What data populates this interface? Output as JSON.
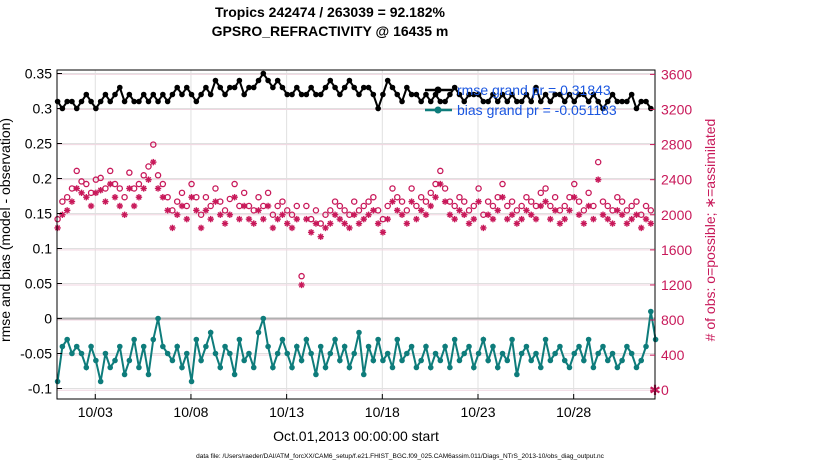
{
  "chart_data": {
    "type": "line",
    "title": "Tropics 242474 / 263039 = 92.182%",
    "subtitle": "GPSRO_REFRACTIVITY @ 16435 m",
    "xlabel": "Oct.01,2013 00:00:00 start",
    "ylabel_left": "rmse and bias (model - observation)",
    "ylabel_right": "# of obs: o=possible; ∗=assimilated",
    "x_ticks": [
      "10/03",
      "10/08",
      "10/13",
      "10/18",
      "10/23",
      "10/28"
    ],
    "x_tick_days": [
      2,
      7,
      12,
      17,
      22,
      27
    ],
    "xlim_days": [
      0,
      31.25
    ],
    "ylim_left": [
      -0.115,
      0.355
    ],
    "yticks_left": [
      "0.35",
      "0.3",
      "0.25",
      "0.2",
      "0.15",
      "0.1",
      "0.05",
      "0",
      "-0.05",
      "-0.1"
    ],
    "ylim_right": [
      -100,
      3650
    ],
    "yticks_right": [
      "3600",
      "3200",
      "2800",
      "2400",
      "2000",
      "1600",
      "1200",
      "800",
      "400",
      "0"
    ],
    "grid": true,
    "legend_placement": "top-right",
    "legend": [
      "rmse grand pr = 0.31843",
      "bias grand pr = -0.051183"
    ],
    "colors": {
      "rmse": "#000000",
      "bias": "#0e7c7b",
      "obs": "#c8195a",
      "zero_line": "#b0b0b0",
      "legend_text": "#1a56e0",
      "grid": "#e0e0e0"
    },
    "x_step_days": 0.25,
    "rmse_values": [
      0.31,
      0.3,
      0.31,
      0.31,
      0.3,
      0.31,
      0.32,
      0.31,
      0.3,
      0.31,
      0.32,
      0.31,
      0.32,
      0.33,
      0.31,
      0.32,
      0.31,
      0.31,
      0.32,
      0.31,
      0.32,
      0.31,
      0.32,
      0.31,
      0.32,
      0.33,
      0.32,
      0.33,
      0.32,
      0.31,
      0.32,
      0.33,
      0.32,
      0.34,
      0.33,
      0.32,
      0.33,
      0.33,
      0.34,
      0.32,
      0.33,
      0.33,
      0.34,
      0.35,
      0.34,
      0.33,
      0.34,
      0.33,
      0.32,
      0.32,
      0.33,
      0.32,
      0.32,
      0.33,
      0.32,
      0.32,
      0.33,
      0.34,
      0.33,
      0.32,
      0.33,
      0.34,
      0.33,
      0.32,
      0.33,
      0.33,
      0.32,
      0.3,
      0.32,
      0.34,
      0.33,
      0.32,
      0.31,
      0.33,
      0.32,
      0.32,
      0.31,
      0.32,
      0.31,
      0.32,
      0.31,
      0.31,
      0.32,
      0.33,
      0.32,
      0.31,
      0.32,
      0.32,
      0.32,
      0.31,
      0.31,
      0.32,
      0.31,
      0.32,
      0.31,
      0.32,
      0.31,
      0.31,
      0.32,
      0.31,
      0.33,
      0.31,
      0.32,
      0.31,
      0.32,
      0.32,
      0.31,
      0.32,
      0.31,
      0.32,
      0.32,
      0.31,
      0.32,
      0.31,
      0.3,
      0.31,
      0.32,
      0.31,
      0.31,
      0.31,
      0.32,
      0.3,
      0.31,
      0.31,
      0.3
    ],
    "bias_values": [
      -0.09,
      -0.04,
      -0.03,
      -0.05,
      -0.04,
      -0.05,
      -0.07,
      -0.04,
      -0.06,
      -0.09,
      -0.05,
      -0.07,
      -0.06,
      -0.04,
      -0.08,
      -0.06,
      -0.03,
      -0.07,
      -0.04,
      -0.08,
      -0.03,
      0.0,
      -0.04,
      -0.05,
      -0.06,
      -0.04,
      -0.07,
      -0.05,
      -0.09,
      -0.03,
      -0.06,
      -0.04,
      -0.02,
      -0.05,
      -0.07,
      -0.04,
      -0.05,
      -0.08,
      -0.03,
      -0.06,
      -0.05,
      -0.07,
      -0.02,
      0.0,
      -0.04,
      -0.07,
      -0.05,
      -0.03,
      -0.05,
      -0.07,
      -0.04,
      -0.06,
      -0.03,
      -0.05,
      -0.08,
      -0.04,
      -0.07,
      -0.05,
      -0.03,
      -0.06,
      -0.04,
      -0.07,
      -0.05,
      -0.02,
      -0.08,
      -0.04,
      -0.06,
      -0.03,
      -0.06,
      -0.05,
      -0.07,
      -0.03,
      -0.06,
      -0.05,
      -0.04,
      -0.07,
      -0.06,
      -0.04,
      -0.07,
      -0.05,
      -0.06,
      -0.04,
      -0.07,
      -0.03,
      -0.06,
      -0.05,
      -0.04,
      -0.07,
      -0.05,
      -0.03,
      -0.06,
      -0.04,
      -0.07,
      -0.05,
      -0.06,
      -0.03,
      -0.08,
      -0.05,
      -0.04,
      -0.06,
      -0.05,
      -0.07,
      -0.03,
      -0.06,
      -0.05,
      -0.04,
      -0.06,
      -0.07,
      -0.05,
      -0.04,
      -0.06,
      -0.03,
      -0.07,
      -0.05,
      -0.04,
      -0.06,
      -0.05,
      -0.07,
      -0.06,
      -0.04,
      -0.05,
      -0.07,
      -0.06,
      -0.04,
      0.01,
      -0.03
    ],
    "obs_possible": [
      1950,
      2150,
      2200,
      2300,
      2500,
      2380,
      2350,
      2250,
      2400,
      2420,
      2300,
      2500,
      2350,
      2300,
      2200,
      2480,
      2300,
      2350,
      2450,
      2550,
      2800,
      2450,
      2350,
      2200,
      2050,
      2150,
      2250,
      2100,
      2350,
      2200,
      2000,
      2200,
      2100,
      2300,
      2150,
      2050,
      2180,
      2350,
      2100,
      2250,
      2100,
      2050,
      2200,
      2100,
      2250,
      2000,
      2100,
      2150,
      2050,
      2000,
      2100,
      1300,
      2100,
      1950,
      2050,
      1900,
      2000,
      2050,
      2150,
      2100,
      2050,
      2000,
      2150,
      2050,
      2100,
      2150,
      2200,
      2050,
      1950,
      2100,
      2300,
      2200,
      2150,
      2050,
      2300,
      2100,
      2200,
      2150,
      2250,
      2350,
      2500,
      2300,
      2150,
      2100,
      2200,
      2150,
      2050,
      2100,
      2300,
      2000,
      2150,
      2100,
      2200,
      2350,
      2100,
      2150,
      2050,
      2100,
      2200,
      2150,
      2100,
      2250,
      2300,
      2100,
      2200,
      2050,
      2100,
      2200,
      2350,
      2150,
      2050,
      2250,
      2100,
      2600,
      2150,
      2100,
      2050,
      2200,
      2150,
      2050,
      2100,
      2150,
      2000,
      2100,
      2050
    ],
    "obs_assimilated": [
      1850,
      2000,
      2050,
      2150,
      2300,
      2250,
      2200,
      2100,
      2250,
      2280,
      2150,
      2350,
      2200,
      2100,
      2000,
      2300,
      2100,
      2200,
      2300,
      2400,
      2600,
      2300,
      2200,
      2050,
      1850,
      2000,
      2100,
      1950,
      2200,
      2050,
      1850,
      2050,
      1950,
      2150,
      2000,
      1900,
      2000,
      2200,
      1950,
      2100,
      1950,
      1900,
      2050,
      1950,
      2100,
      1850,
      1950,
      2000,
      1900,
      1850,
      1950,
      1200,
      1950,
      1800,
      1900,
      1750,
      1850,
      1900,
      2000,
      1950,
      1900,
      1850,
      2000,
      1900,
      1950,
      2000,
      2050,
      1900,
      1800,
      1950,
      2150,
      2050,
      2000,
      1900,
      2150,
      1950,
      2050,
      2000,
      2100,
      2200,
      2350,
      2150,
      2000,
      1950,
      2050,
      2000,
      1900,
      1950,
      2150,
      1850,
      2000,
      1950,
      2050,
      2200,
      1950,
      2000,
      1900,
      1950,
      2050,
      2000,
      1950,
      2100,
      2150,
      1950,
      2050,
      1900,
      1950,
      2050,
      2200,
      2000,
      1900,
      2100,
      1950,
      2400,
      2000,
      1950,
      1900,
      2050,
      2000,
      1900,
      1950,
      2000,
      1850,
      1950,
      1900
    ],
    "obs_outlier_last": 0
  },
  "footnote": "data file: /Users/raeder/DAI/ATM_forcXX/CAM6_setup/f.e21.FHIST_BGC.f09_025.CAM6assim.011/Diags_NTrS_2013-10/obs_diag_output.nc"
}
